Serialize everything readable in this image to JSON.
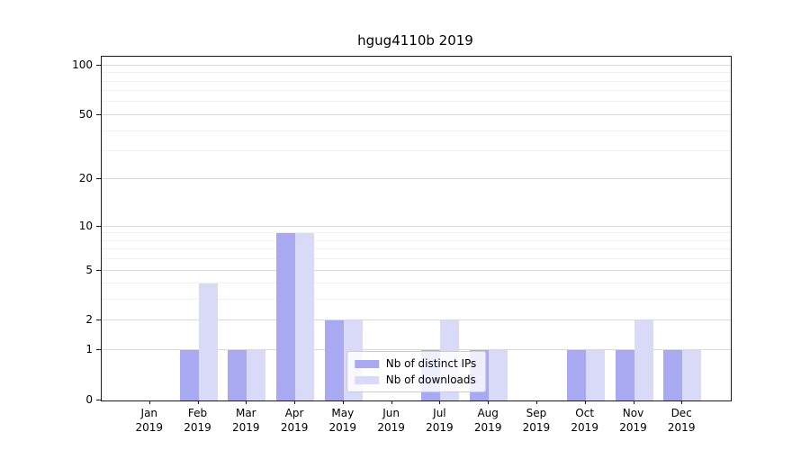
{
  "title": "hgug4110b 2019",
  "chart_data": {
    "type": "bar",
    "title": "hgug4110b 2019",
    "categories": [
      "Jan",
      "Feb",
      "Mar",
      "Apr",
      "May",
      "Jun",
      "Jul",
      "Aug",
      "Sep",
      "Oct",
      "Nov",
      "Dec"
    ],
    "year": "2019",
    "series": [
      {
        "name": "Nb of distinct IPs",
        "color": "#a9a9f1",
        "values": [
          0,
          1,
          1,
          9,
          2,
          0,
          1,
          1,
          0,
          1,
          1,
          1
        ]
      },
      {
        "name": "Nb of downloads",
        "color": "#d9d9f8",
        "values": [
          0,
          4,
          1,
          9,
          2,
          0,
          2,
          1,
          0,
          1,
          2,
          1
        ]
      }
    ],
    "xlabel": "",
    "ylabel": "",
    "yscale": "log1p",
    "ymax": 113,
    "yticks": [
      0,
      1,
      2,
      5,
      10,
      20,
      50,
      100
    ],
    "minor_gridlines": [
      3,
      4,
      6,
      7,
      8,
      9,
      30,
      40,
      60,
      70,
      80,
      90
    ],
    "grid": true,
    "legend_position": "lower center",
    "colors": {
      "major_grid": "#d9d9d9",
      "minor_grid": "#f0f0f0",
      "axis": "#1a1a1a"
    }
  }
}
